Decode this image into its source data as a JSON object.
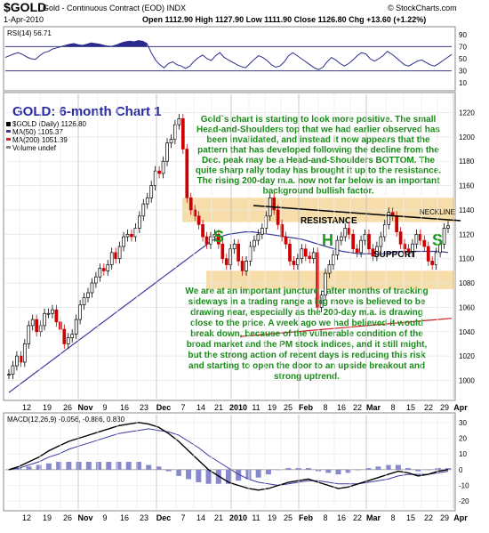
{
  "header": {
    "title": "$GOLD",
    "subtitle": "Gold - Continuous Contract (EOD)  INDX",
    "date": "1-Apr-2010",
    "quote": "Open 1112.90  High 1127.90  Low 1111.90  Close 1126.80  Chg +13.60 (+1.22%)",
    "quote_arrow": "▲",
    "watermark": "© StockCharts.com"
  },
  "rsi_panel": {
    "label": "RSI(14) 56.71",
    "ticks": [
      "90",
      "70",
      "50",
      "30",
      "10"
    ]
  },
  "price_panel": {
    "legend": [
      "$GOLD (Daily) 1126.80",
      "MA(50) 1105.37",
      "MA(200) 1051.39",
      "Volume undef"
    ],
    "legend_colors": [
      "#000000",
      "#3a3a9a",
      "#cc2222",
      "#888888"
    ],
    "y_ticks": [
      "1220",
      "1200",
      "1180",
      "1160",
      "1140",
      "1120",
      "1100",
      "1080",
      "1060",
      "1040",
      "1020",
      "1000"
    ],
    "chart_title": "GOLD: 6-month Chart 1",
    "commentary_top": [
      "Gold`s chart is starting to look more positive. The small",
      "Head-and-Shoulders top that we had earlier observed has",
      "been invalidated, and instead it now appears that the",
      "pattern that has developed following the decline from the",
      "Dec. peak may be a Head-and-Shoulders BOTTOM. The",
      "quite sharp rally today has brought it up to the resistance.",
      "The rising 200-day m.a. now not far below is an important",
      "background bullish factor."
    ],
    "commentary_bottom": [
      "We are at an important juncture - after months of tracking",
      "sideways in a trading range a big move is believed to be",
      "drawing near, especially as the 200-day m.a. is drawing",
      "close to the price. A week ago we had believed it would",
      "break down, because of the vulnerable condition of the",
      "broad market and the PM stock indices, and it still might,",
      "but the strong action of recent days is reducing this risk",
      "and starting to open the door to an upside breakout and",
      "strong uptrend."
    ],
    "resistance_label": "RESISTANCE",
    "support_label": "SUPPORT",
    "neckline_label": "NECKLINE",
    "pattern_letters": [
      "S",
      "H",
      "S"
    ]
  },
  "x_axis": {
    "labels": [
      "12",
      "19",
      "26",
      "Nov",
      "9",
      "16",
      "23",
      "Dec",
      "7",
      "14",
      "21",
      "2010",
      "11",
      "19",
      "25",
      "Feb",
      "8",
      "16",
      "22",
      "Mar",
      "8",
      "15",
      "22",
      "29",
      "Apr"
    ],
    "bold": [
      "Nov",
      "Dec",
      "2010",
      "Feb",
      "Mar",
      "Apr"
    ]
  },
  "macd_panel": {
    "label": "MACD(12,26,9) -0.056, -0.886, 0.830",
    "ticks": [
      "30",
      "20",
      "10",
      "0",
      "-10",
      "-20"
    ]
  },
  "colors": {
    "resistance_band": "#f5d79a",
    "ma50": "#3a3a9a",
    "ma200": "#cc2222",
    "price_up": "#000000",
    "price_down": "#cc0000",
    "annotation_green": "#1a8a1a",
    "title_blue": "#2a2aa0",
    "neckline": "#000000",
    "macd_hist": "#8888cc"
  },
  "chart_data": [
    {
      "type": "line",
      "title": "RSI(14) 56.71",
      "ylim": [
        0,
        100
      ],
      "ref_lines": [
        70,
        30
      ],
      "values": [
        52,
        55,
        58,
        60,
        57,
        53,
        50,
        49,
        55,
        60,
        62,
        66,
        68,
        70,
        72,
        74,
        75,
        73,
        72,
        74,
        76,
        75,
        74,
        72,
        70,
        71,
        73,
        76,
        78,
        79,
        78,
        80,
        79,
        75,
        60,
        48,
        40,
        35,
        42,
        45,
        40,
        38,
        34,
        38,
        46,
        52,
        56,
        50,
        47,
        55,
        60,
        52,
        48,
        44,
        40,
        37,
        35,
        42,
        49,
        55,
        52,
        47,
        40,
        36,
        38,
        45,
        55,
        60,
        55,
        50,
        45,
        40,
        35,
        32,
        36,
        45,
        52,
        48,
        42,
        38,
        42,
        48,
        55,
        60,
        58,
        50,
        46,
        50,
        55,
        62,
        58,
        52,
        46,
        40,
        38,
        42,
        46,
        48,
        44,
        40,
        38,
        42,
        47,
        52,
        57
      ]
    },
    {
      "type": "line",
      "title": "$GOLD (Daily)",
      "ylim": [
        985,
        1235
      ],
      "series": [
        {
          "name": "$GOLD (Daily) 1126.80",
          "values": [
            1005,
            1012,
            1020,
            1015,
            1030,
            1045,
            1050,
            1040,
            1045,
            1055,
            1055,
            1058,
            1048,
            1042,
            1030,
            1035,
            1038,
            1050,
            1062,
            1068,
            1072,
            1080,
            1085,
            1092,
            1090,
            1095,
            1105,
            1100,
            1110,
            1118,
            1120,
            1118,
            1125,
            1135,
            1145,
            1150,
            1160,
            1172,
            1170,
            1180,
            1195,
            1198,
            1210,
            1215,
            1190,
            1150,
            1140,
            1135,
            1128,
            1118,
            1112,
            1118,
            1120,
            1112,
            1100,
            1095,
            1108,
            1112,
            1098,
            1090,
            1098,
            1110,
            1115,
            1120,
            1125,
            1135,
            1150,
            1140,
            1128,
            1118,
            1112,
            1098,
            1095,
            1100,
            1108,
            1102,
            1100,
            1105,
            1060,
            1070,
            1088,
            1095,
            1103,
            1115,
            1118,
            1125,
            1120,
            1108,
            1105,
            1115,
            1120,
            1108,
            1102,
            1110,
            1118,
            1128,
            1138,
            1135,
            1122,
            1112,
            1108,
            1105,
            1112,
            1120,
            1115,
            1110,
            1098,
            1095,
            1105,
            1112,
            1125,
            1127
          ]
        },
        {
          "name": "MA(50) 1105.37",
          "values": [
            990,
            995,
            1000,
            1005,
            1010,
            1015,
            1020,
            1025,
            1030,
            1035,
            1040,
            1045,
            1050,
            1055,
            1060,
            1065,
            1070,
            1075,
            1080,
            1085,
            1090,
            1095,
            1100,
            1105,
            1110,
            1115,
            1118,
            1120,
            1121,
            1122,
            1122,
            1121,
            1120,
            1119,
            1118,
            1117,
            1116,
            1114,
            1112,
            1110,
            1108,
            1106,
            1105,
            1104,
            1104,
            1104,
            1104,
            1105,
            1106,
            1106,
            1106,
            1106,
            1106,
            1106,
            1105
          ]
        },
        {
          "name": "MA(200) 1051.39",
          "values": [
            1036,
            1037,
            1038,
            1039,
            1040,
            1041,
            1042,
            1043,
            1044,
            1045,
            1046,
            1047,
            1048,
            1049,
            1050,
            1051
          ]
        }
      ],
      "annotations": {
        "resistance": [
          1130,
          1150
        ],
        "support": [
          1075,
          1090
        ]
      }
    },
    {
      "type": "line",
      "title": "MACD(12,26,9) -0.056, -0.886, 0.830",
      "ylim": [
        -25,
        35
      ],
      "series": [
        {
          "name": "MACD",
          "values": [
            0,
            2,
            5,
            8,
            12,
            15,
            18,
            20,
            22,
            24,
            26,
            28,
            29,
            30,
            29,
            27,
            23,
            18,
            12,
            6,
            0,
            -4,
            -8,
            -10,
            -12,
            -13,
            -12,
            -10,
            -8,
            -7,
            -6,
            -8,
            -10,
            -12,
            -11,
            -9,
            -7,
            -5,
            -3,
            -1,
            -2,
            -4,
            -3,
            -1,
            0
          ]
        },
        {
          "name": "Signal",
          "values": [
            0,
            1,
            3,
            5,
            8,
            10,
            13,
            15,
            17,
            19,
            21,
            23,
            24,
            25,
            26,
            25,
            24,
            22,
            18,
            14,
            9,
            5,
            1,
            -3,
            -6,
            -8,
            -9,
            -10,
            -9,
            -8,
            -7,
            -7,
            -8,
            -9,
            -9,
            -9,
            -8,
            -7,
            -6,
            -4,
            -3,
            -3,
            -3,
            -2,
            -1
          ]
        }
      ]
    }
  ]
}
